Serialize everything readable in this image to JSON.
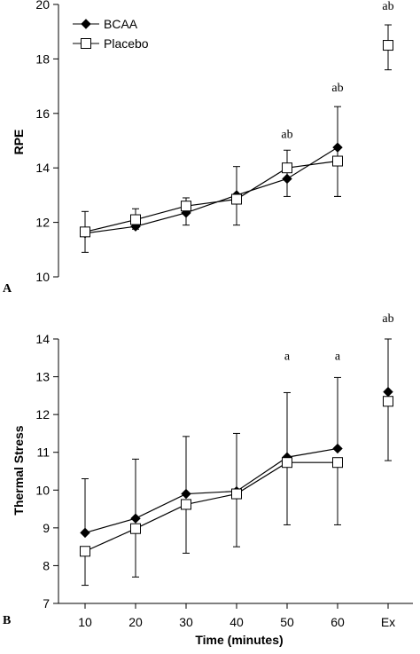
{
  "chart_data": [
    {
      "panel_label": "A",
      "type": "line",
      "ylabel": "RPE",
      "xlabel": "",
      "categories": [
        "10",
        "20",
        "30",
        "40",
        "50",
        "60",
        "Ex"
      ],
      "show_x_tick_labels": false,
      "ylim": [
        10,
        20
      ],
      "yticks": [
        10,
        12,
        14,
        16,
        18,
        20
      ],
      "grid": false,
      "legend": "top-left",
      "series": [
        {
          "name": "BCAA",
          "marker": "filled-diamond",
          "values": [
            11.6,
            11.85,
            12.35,
            13.0,
            13.6,
            14.75,
            null
          ],
          "err_low": [
            null,
            null,
            null,
            null,
            null,
            12.95,
            null
          ],
          "err_high": [
            null,
            null,
            null,
            null,
            null,
            16.25,
            null
          ]
        },
        {
          "name": "Placebo",
          "marker": "open-square",
          "values": [
            11.65,
            12.1,
            12.6,
            12.85,
            14.0,
            14.25,
            18.5
          ],
          "err_low": [
            10.9,
            11.75,
            11.9,
            11.9,
            12.95,
            12.95,
            17.6
          ],
          "err_high": [
            12.4,
            12.5,
            12.9,
            14.05,
            14.65,
            14.25,
            19.25
          ]
        }
      ],
      "annotations": [
        {
          "category": "50",
          "text": "ab",
          "y": 15.1
        },
        {
          "category": "60",
          "text": "ab",
          "y": 16.8
        },
        {
          "category": "Ex",
          "text": "ab",
          "y": 19.8
        }
      ]
    },
    {
      "panel_label": "B",
      "type": "line",
      "ylabel": "Thermal Stress",
      "xlabel": "Time (minutes)",
      "categories": [
        "10",
        "20",
        "30",
        "40",
        "50",
        "60",
        "Ex"
      ],
      "show_x_tick_labels": true,
      "ylim": [
        7,
        14
      ],
      "yticks": [
        7,
        8,
        9,
        10,
        11,
        12,
        13,
        14
      ],
      "grid": false,
      "legend": "none",
      "series": [
        {
          "name": "BCAA",
          "marker": "filled-diamond",
          "values": [
            8.87,
            9.25,
            9.9,
            9.97,
            10.87,
            11.1,
            12.6
          ],
          "err_low": [
            null,
            null,
            null,
            null,
            null,
            null,
            null
          ],
          "err_high": [
            10.3,
            10.82,
            11.42,
            11.5,
            12.58,
            12.98,
            14.0
          ]
        },
        {
          "name": "Placebo",
          "marker": "open-square",
          "values": [
            8.38,
            8.98,
            9.62,
            9.9,
            10.73,
            10.73,
            12.35
          ],
          "err_low": [
            7.48,
            7.7,
            8.33,
            8.5,
            9.08,
            9.08,
            10.78
          ],
          "err_high": [
            null,
            null,
            null,
            null,
            null,
            null,
            null
          ]
        }
      ],
      "annotations": [
        {
          "category": "50",
          "text": "a",
          "y": 13.45
        },
        {
          "category": "60",
          "text": "a",
          "y": 13.45
        },
        {
          "category": "Ex",
          "text": "ab",
          "y": 14.45
        }
      ]
    }
  ]
}
